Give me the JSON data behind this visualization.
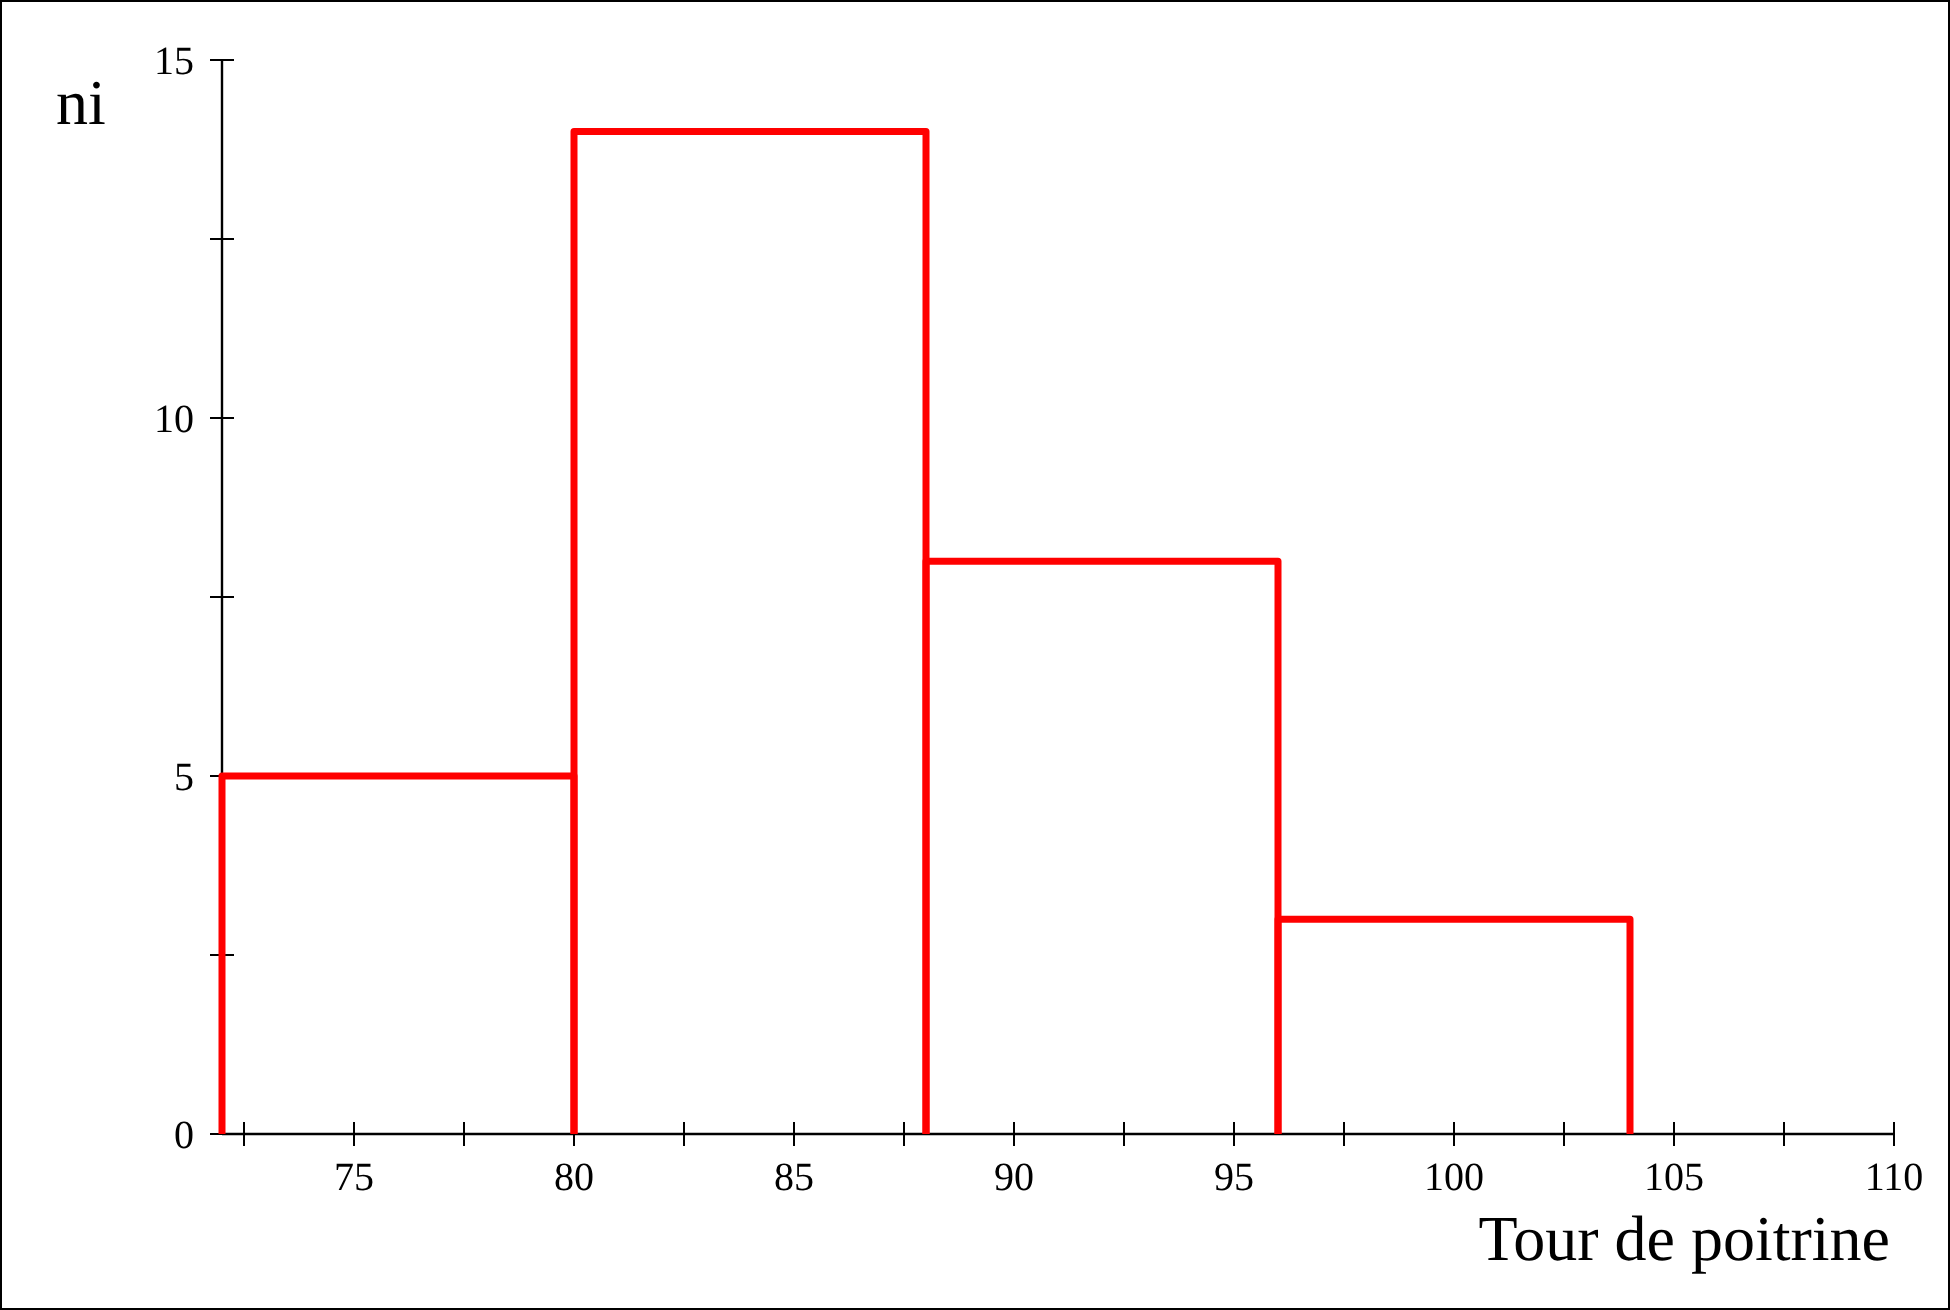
{
  "chart_data": {
    "type": "histogram",
    "xlabel": "Tour de poitrine",
    "ylabel": "ni",
    "bins": [
      72,
      80,
      88,
      96,
      104
    ],
    "values": [
      5,
      14,
      8,
      3
    ],
    "color": "#ff0000",
    "xlim": [
      72,
      110
    ],
    "xticks": [
      {
        "value": 72.5,
        "label": null
      },
      75,
      {
        "value": 77.5,
        "label": null
      },
      80,
      {
        "value": 82.5,
        "label": null
      },
      85,
      {
        "value": 87.5,
        "label": null
      },
      90,
      {
        "value": 92.5,
        "label": null
      },
      95,
      {
        "value": 97.5,
        "label": null
      },
      100,
      {
        "value": 102.5,
        "label": null
      },
      105,
      {
        "value": 107.5,
        "label": null
      },
      110
    ],
    "ylim": [
      0,
      15
    ],
    "yticks": [
      0,
      {
        "value": 2.5,
        "label": null
      },
      5,
      {
        "value": 7.5,
        "label": null
      },
      10,
      {
        "value": 12.5,
        "label": null
      },
      15
    ],
    "grid": false
  }
}
